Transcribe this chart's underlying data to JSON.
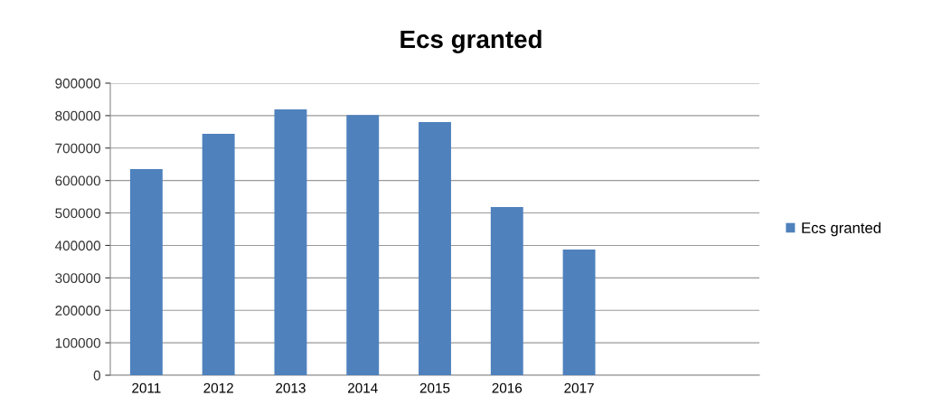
{
  "chart_data": {
    "type": "bar",
    "title": "Ecs granted",
    "categories": [
      "2011",
      "2012",
      "2013",
      "2014",
      "2015",
      "2016",
      "2017",
      null,
      null
    ],
    "series": [
      {
        "name": "Ecs granted",
        "color": "#4f81bd",
        "values": [
          635000,
          744000,
          819000,
          802000,
          780000,
          518000,
          387000,
          null,
          null
        ]
      }
    ],
    "ylim": [
      0,
      900000
    ],
    "yticks": [
      0,
      100000,
      200000,
      300000,
      400000,
      500000,
      600000,
      700000,
      800000,
      900000
    ],
    "grid": "y",
    "legend": "right"
  }
}
